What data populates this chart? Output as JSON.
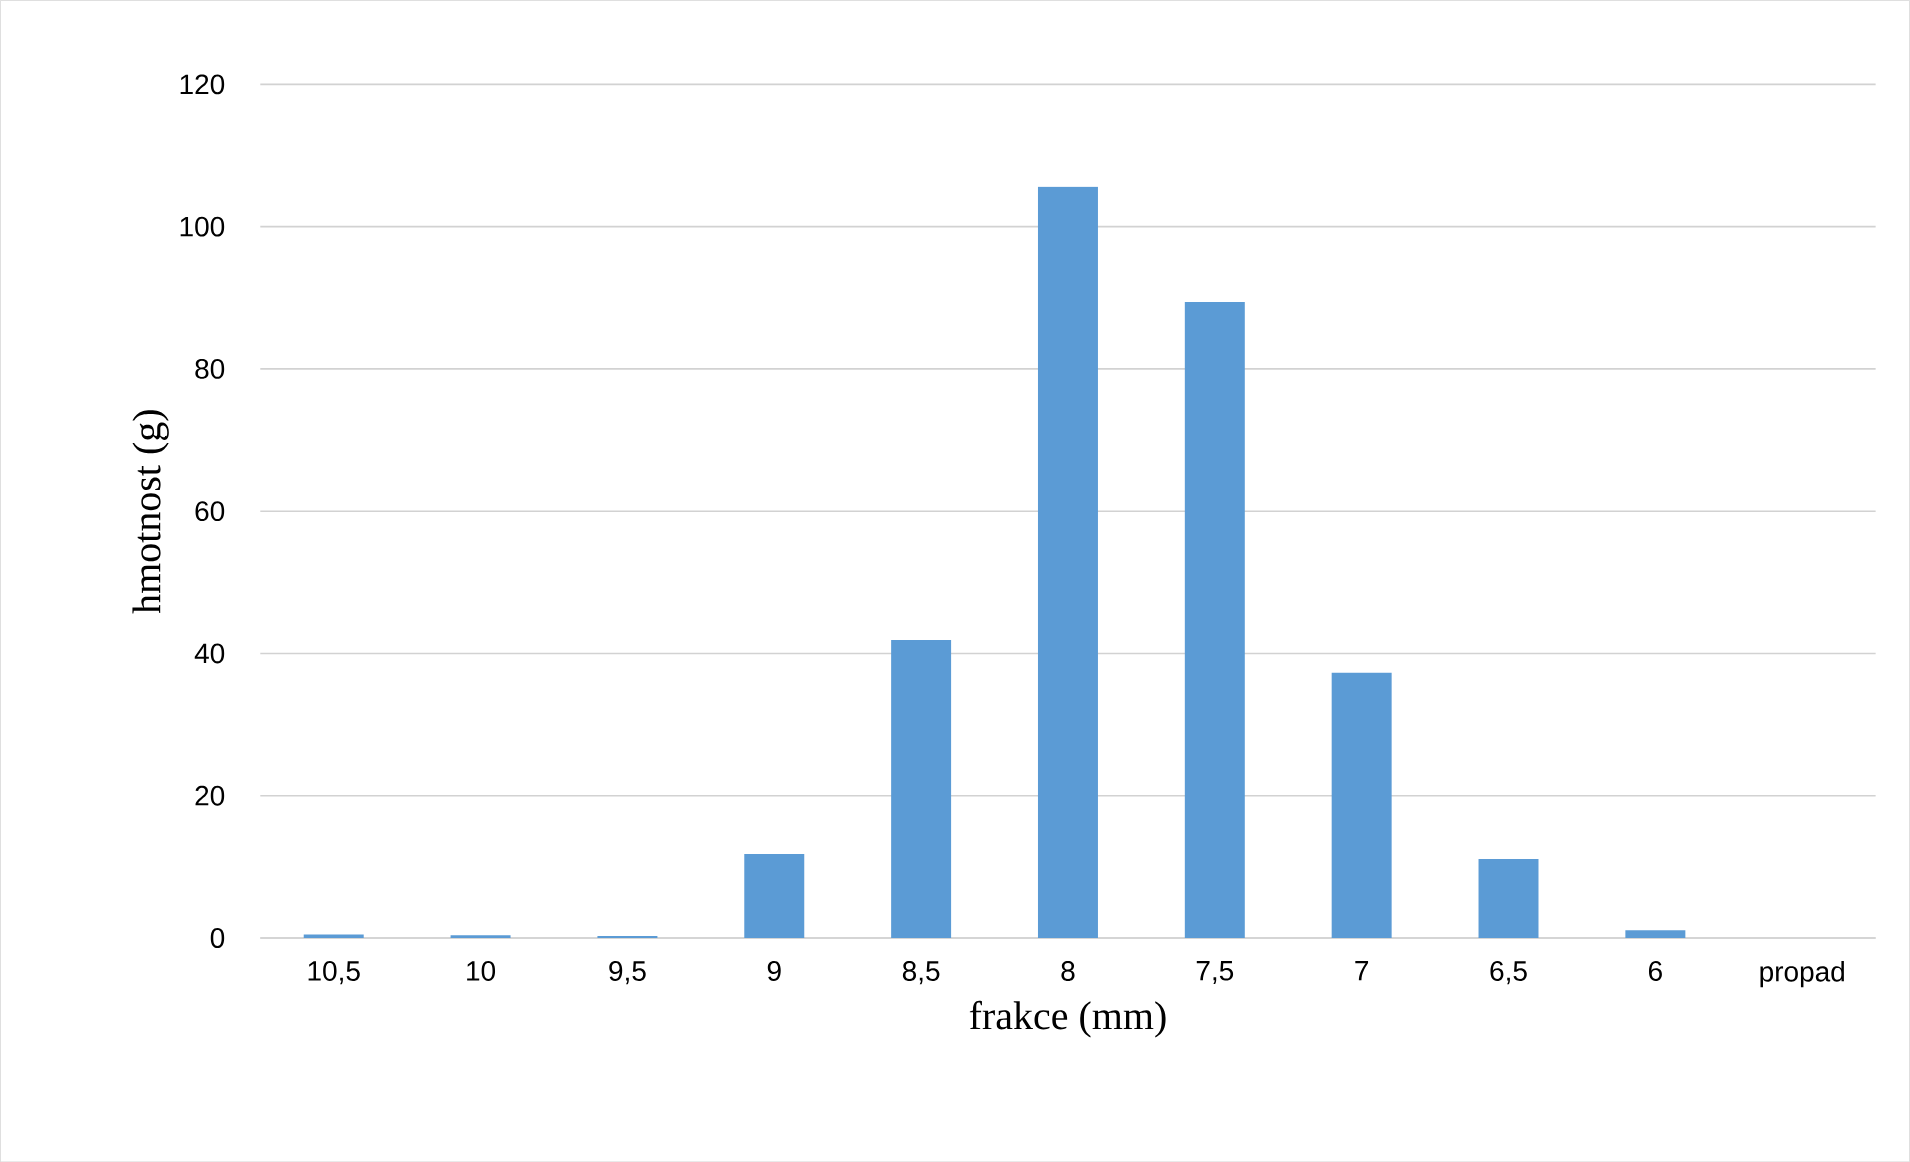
{
  "chart_data": {
    "type": "bar",
    "xlabel": "frakce (mm)",
    "ylabel": "hmotnost (g)",
    "categories": [
      "10,5",
      "10",
      "9,5",
      "9",
      "8,5",
      "8",
      "7,5",
      "7",
      "6,5",
      "6",
      "propad"
    ],
    "values": [
      0.5,
      0.4,
      0.3,
      11.8,
      41.9,
      105.6,
      89.4,
      37.3,
      11.1,
      1.1,
      0
    ],
    "color": "#5b9bd5",
    "ylim": [
      0,
      120
    ],
    "yticks": [
      0,
      20,
      40,
      60,
      80,
      100,
      120
    ],
    "grid": "y"
  }
}
